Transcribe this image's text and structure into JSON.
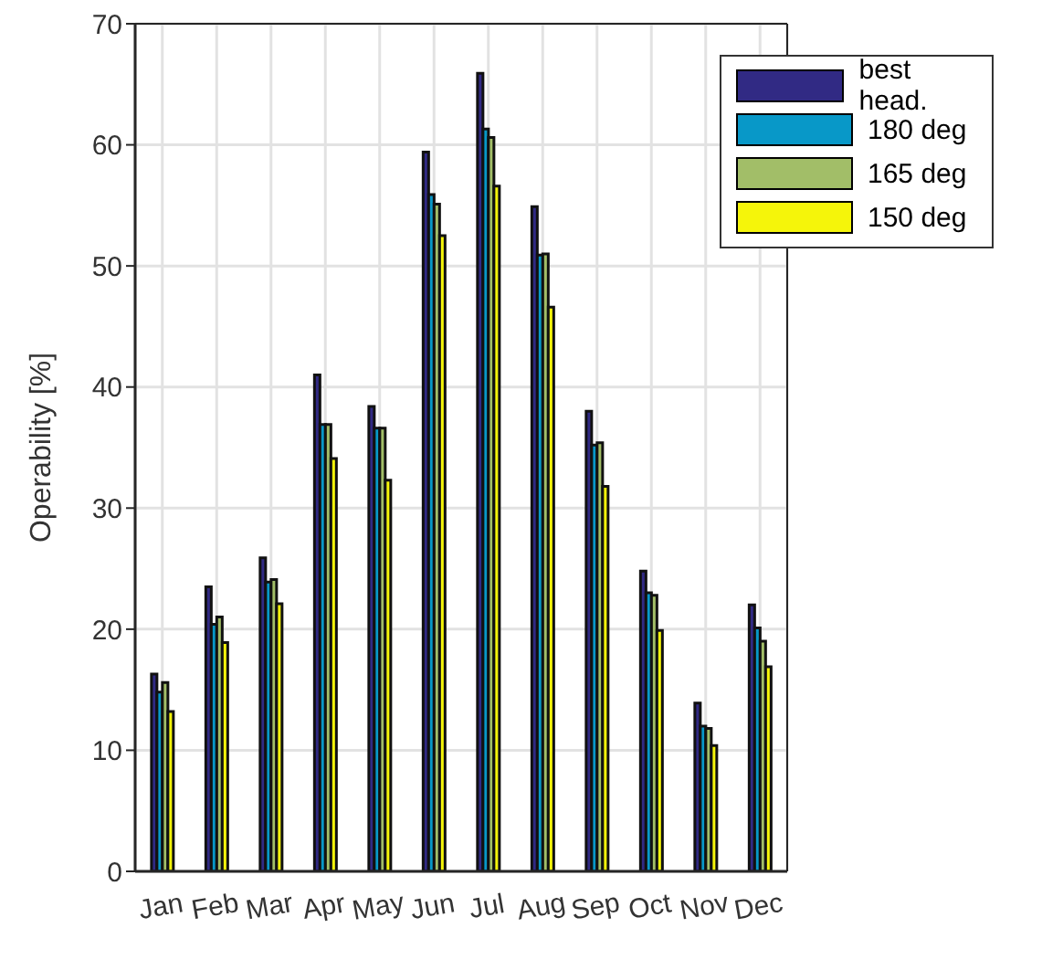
{
  "chart_data": {
    "type": "bar",
    "ylabel": "Operability [%]",
    "categories": [
      "Jan",
      "Feb",
      "Mar",
      "Apr",
      "May",
      "Jun",
      "Jul",
      "Aug",
      "Sep",
      "Oct",
      "Nov",
      "Dec"
    ],
    "series": [
      {
        "name": "best head.",
        "color": "#312a84",
        "values": [
          16.3,
          23.5,
          25.9,
          41.0,
          38.4,
          59.4,
          65.9,
          54.9,
          38.0,
          24.8,
          13.9,
          22.0
        ]
      },
      {
        "name": "180 deg",
        "color": "#0898c8",
        "values": [
          14.8,
          20.4,
          23.9,
          36.9,
          36.6,
          55.9,
          61.3,
          50.9,
          35.2,
          23.0,
          12.0,
          20.1
        ]
      },
      {
        "name": "165 deg",
        "color": "#a2be68",
        "values": [
          15.6,
          21.0,
          24.1,
          36.9,
          36.6,
          55.1,
          60.6,
          51.0,
          35.4,
          22.8,
          11.8,
          19.0
        ]
      },
      {
        "name": "150 deg",
        "color": "#f5f50a",
        "values": [
          13.2,
          18.9,
          22.1,
          34.1,
          32.3,
          52.5,
          56.6,
          46.6,
          31.8,
          19.9,
          10.4,
          16.9
        ]
      }
    ],
    "ylim": [
      0,
      70
    ],
    "yticks": [
      0,
      10,
      20,
      30,
      40,
      50,
      60,
      70
    ],
    "grid": true,
    "legend": "top right"
  }
}
